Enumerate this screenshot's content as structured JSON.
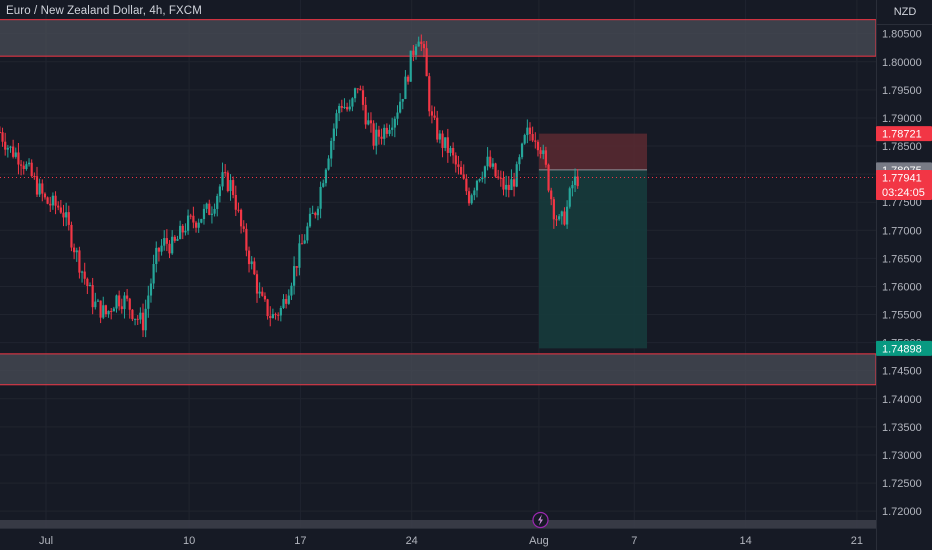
{
  "header": {
    "title": "Euro / New Zealand Dollar, 4h, FXCM",
    "currency": "NZD"
  },
  "colors": {
    "background": "#161a25",
    "up": "#26a69a",
    "down": "#f23645",
    "zone_fill": "#4a4d57",
    "zone_border": "#f23645",
    "stop_fill": "#5a2a31",
    "target_fill": "#163b3c",
    "grid": "#20242f"
  },
  "chart_data": {
    "type": "candlestick",
    "title": "Euro / New Zealand Dollar, 4h, FXCM",
    "ylim": [
      1.717,
      1.811
    ],
    "y_ticks": [
      "1.80500",
      "1.80000",
      "1.79500",
      "1.79000",
      "1.78500",
      "1.78000",
      "1.77500",
      "1.77000",
      "1.76500",
      "1.76000",
      "1.75500",
      "1.75000",
      "1.74500",
      "1.74000",
      "1.73500",
      "1.73000",
      "1.72500",
      "1.72000"
    ],
    "x_ticks": [
      {
        "label": "Jul",
        "x": 0
      },
      {
        "label": "10",
        "x": 9
      },
      {
        "label": "17",
        "x": 16
      },
      {
        "label": "24",
        "x": 23
      },
      {
        "label": "Aug",
        "x": 31
      },
      {
        "label": "7",
        "x": 37
      },
      {
        "label": "14",
        "x": 44
      },
      {
        "label": "21",
        "x": 51
      }
    ],
    "key_points": [
      [
        -2.9,
        1.7875
      ],
      [
        -2.3,
        1.7845
      ],
      [
        -1.6,
        1.783
      ],
      [
        -0.8,
        1.779
      ],
      [
        0.0,
        1.775
      ],
      [
        1.0,
        1.774
      ],
      [
        2.0,
        1.765
      ],
      [
        3.0,
        1.757
      ],
      [
        3.8,
        1.755
      ],
      [
        4.4,
        1.758
      ],
      [
        5.0,
        1.7575
      ],
      [
        5.7,
        1.7545
      ],
      [
        6.1,
        1.7535
      ],
      [
        6.5,
        1.7595
      ],
      [
        7.0,
        1.766
      ],
      [
        7.5,
        1.768
      ],
      [
        8.0,
        1.767
      ],
      [
        8.8,
        1.771
      ],
      [
        9.5,
        1.772
      ],
      [
        10.4,
        1.774
      ],
      [
        11.1,
        1.779
      ],
      [
        11.7,
        1.778
      ],
      [
        12.3,
        1.77
      ],
      [
        12.9,
        1.764
      ],
      [
        13.5,
        1.7575
      ],
      [
        14.2,
        1.7545
      ],
      [
        14.8,
        1.756
      ],
      [
        15.6,
        1.763
      ],
      [
        16.4,
        1.77
      ],
      [
        17.0,
        1.774
      ],
      [
        17.6,
        1.782
      ],
      [
        18.0,
        1.787
      ],
      [
        18.5,
        1.793
      ],
      [
        19.1,
        1.791
      ],
      [
        19.6,
        1.796
      ],
      [
        20.2,
        1.7895
      ],
      [
        20.6,
        1.786
      ],
      [
        21.3,
        1.788
      ],
      [
        22.0,
        1.791
      ],
      [
        22.6,
        1.796
      ],
      [
        23.0,
        1.801
      ],
      [
        23.4,
        1.8055
      ],
      [
        23.8,
        1.8005
      ],
      [
        24.2,
        1.79
      ],
      [
        24.8,
        1.786
      ],
      [
        25.4,
        1.784
      ],
      [
        26.0,
        1.78
      ],
      [
        26.6,
        1.776
      ],
      [
        27.2,
        1.78
      ],
      [
        27.8,
        1.782
      ],
      [
        28.4,
        1.779
      ],
      [
        29.0,
        1.777
      ],
      [
        29.6,
        1.78
      ],
      [
        30.2,
        1.787
      ],
      [
        30.7,
        1.7875
      ],
      [
        31.1,
        1.785
      ],
      [
        31.5,
        1.78
      ],
      [
        31.9,
        1.774
      ],
      [
        32.3,
        1.771
      ],
      [
        32.7,
        1.773
      ],
      [
        33.1,
        1.778
      ],
      [
        33.5,
        1.7795
      ]
    ],
    "zones": [
      {
        "name": "resistance",
        "from": 1.801,
        "to": 1.8075
      },
      {
        "name": "support",
        "from": 1.7425,
        "to": 1.748
      }
    ],
    "position": {
      "type": "short",
      "x_start": 31.0,
      "x_end": 37.8,
      "entry": 1.78075,
      "stop": 1.78721,
      "target": 1.74898
    },
    "price_tags": [
      {
        "label": "1.78721",
        "value": 1.78721,
        "style": "red"
      },
      {
        "label": "1.78075",
        "value": 1.78075,
        "style": "gray"
      },
      {
        "label": "1.77941",
        "value": 1.77941,
        "style": "red",
        "sub": "03:24:05"
      },
      {
        "label": "1.74898",
        "value": 1.74898,
        "style": "green"
      }
    ],
    "current_price": 1.77941,
    "timeline_icon": "lightning-icon"
  }
}
